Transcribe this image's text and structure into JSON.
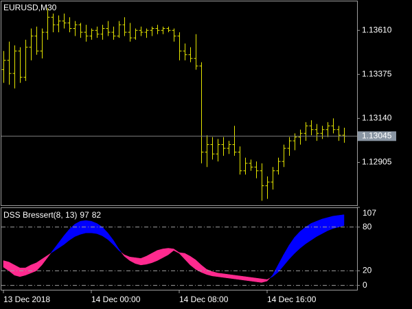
{
  "chart_data": [
    {
      "type": "ohlc",
      "title": "EURUSD,M30",
      "color": "#e6e600",
      "categories": [
        "13 Dec 2018",
        null,
        null,
        null,
        null,
        null,
        null,
        null,
        null,
        null,
        null,
        null,
        null,
        null,
        null,
        null,
        "14 Dec 00:00",
        null,
        null,
        null,
        null,
        null,
        null,
        null,
        null,
        null,
        null,
        null,
        null,
        null,
        null,
        null,
        "14 Dec 08:00",
        null,
        null,
        null,
        null,
        null,
        null,
        null,
        null,
        null,
        null,
        null,
        null,
        null,
        null,
        null,
        "14 Dec 16:00",
        null,
        null,
        null,
        null,
        null,
        null,
        null,
        null,
        null,
        null,
        null,
        null,
        null,
        null
      ],
      "open": [
        1.134,
        1.1345,
        1.1338,
        1.135,
        1.1336,
        1.1352,
        1.1358,
        1.135,
        1.136,
        1.1368,
        1.1364,
        1.1366,
        1.1365,
        1.1362,
        1.1364,
        1.136,
        1.1358,
        1.1361,
        1.1359,
        1.1362,
        1.136,
        1.1358,
        1.1364,
        1.136,
        1.1357,
        1.1361,
        1.136,
        1.1361,
        1.1362,
        1.1361,
        1.1362,
        1.1361,
        1.1358,
        1.135,
        1.1348,
        1.1346,
        1.1342,
        1.1296,
        1.13,
        1.1295,
        1.13,
        1.1298,
        1.13,
        1.1296,
        1.1286,
        1.129,
        1.1288,
        1.1286,
        1.1278,
        1.128,
        1.1286,
        1.1291,
        1.1298,
        1.1302,
        1.1304,
        1.1306,
        1.131,
        1.1308,
        1.1306,
        1.1308,
        1.131,
        1.1308,
        1.1305
      ],
      "high": [
        1.135,
        1.1355,
        1.1353,
        1.1352,
        1.1356,
        1.1362,
        1.1363,
        1.1362,
        1.1373,
        1.137,
        1.1369,
        1.137,
        1.1368,
        1.1366,
        1.1365,
        1.1364,
        1.1362,
        1.1363,
        1.1364,
        1.1366,
        1.1363,
        1.1366,
        1.1368,
        1.1365,
        1.1362,
        1.1363,
        1.1362,
        1.1363,
        1.1364,
        1.1363,
        1.1363,
        1.1362,
        1.136,
        1.1354,
        1.1352,
        1.1359,
        1.1344,
        1.1305,
        1.1304,
        1.1303,
        1.1304,
        1.1302,
        1.131,
        1.1299,
        1.1293,
        1.1292,
        1.1291,
        1.129,
        1.1283,
        1.1288,
        1.1293,
        1.13,
        1.1304,
        1.1306,
        1.1308,
        1.1312,
        1.1313,
        1.1311,
        1.131,
        1.1312,
        1.1314,
        1.131,
        1.1309
      ],
      "low": [
        1.1333,
        1.1332,
        1.133,
        1.1333,
        1.1334,
        1.1345,
        1.1348,
        1.1346,
        1.1356,
        1.136,
        1.136,
        1.1362,
        1.136,
        1.1358,
        1.1357,
        1.1355,
        1.1356,
        1.1357,
        1.1356,
        1.1358,
        1.1356,
        1.1357,
        1.1358,
        1.1355,
        1.1356,
        1.1358,
        1.1357,
        1.1358,
        1.1359,
        1.1359,
        1.136,
        1.1355,
        1.1345,
        1.1345,
        1.1344,
        1.134,
        1.129,
        1.1288,
        1.1292,
        1.1291,
        1.1294,
        1.1295,
        1.1294,
        1.1284,
        1.1284,
        1.1286,
        1.1282,
        1.127,
        1.1271,
        1.1276,
        1.1284,
        1.1288,
        1.1294,
        1.1297,
        1.13,
        1.1302,
        1.1305,
        1.1302,
        1.1303,
        1.1304,
        1.1306,
        1.1302,
        1.1301
      ],
      "close": [
        1.1345,
        1.1338,
        1.135,
        1.1336,
        1.1352,
        1.1358,
        1.135,
        1.136,
        1.1368,
        1.1364,
        1.1366,
        1.1365,
        1.1362,
        1.1364,
        1.136,
        1.1358,
        1.1361,
        1.1359,
        1.1362,
        1.136,
        1.1358,
        1.1364,
        1.136,
        1.1357,
        1.1361,
        1.136,
        1.1361,
        1.1362,
        1.1361,
        1.1362,
        1.1361,
        1.1358,
        1.135,
        1.1348,
        1.1346,
        1.1342,
        1.1296,
        1.13,
        1.1295,
        1.13,
        1.1298,
        1.13,
        1.1296,
        1.1286,
        1.129,
        1.1288,
        1.1286,
        1.1278,
        1.128,
        1.1286,
        1.1291,
        1.1298,
        1.1302,
        1.1304,
        1.1306,
        1.131,
        1.1308,
        1.1306,
        1.1308,
        1.131,
        1.1308,
        1.1305,
        1.13045
      ],
      "ylim": [
        1.12672,
        1.13765
      ],
      "yticks": [
        {
          "value": 1.1361,
          "label": "1.13610"
        },
        1.13375,
        {
          "value": 1.1314,
          "label": "1.13140"
        },
        1.12905
      ]
    },
    {
      "type": "band",
      "title": "DSS Bressert(8, 13)",
      "up_color": "#0000ff",
      "down_color": "#ff2a8f",
      "series": [
        {
          "values": [
            25,
            20,
            14,
            12,
            14,
            17,
            20,
            28,
            38,
            48,
            58,
            68,
            77,
            84,
            88,
            89,
            88,
            85,
            80,
            72,
            62,
            50,
            40,
            34,
            30,
            28,
            29,
            31,
            34,
            38,
            42,
            48,
            44,
            36,
            28,
            22,
            18,
            15,
            13,
            12,
            11,
            10,
            9,
            8,
            7,
            6,
            5,
            4,
            6,
            14,
            28,
            42,
            55,
            66,
            74,
            80,
            85,
            88,
            91,
            93,
            95,
            96,
            97
          ]
        },
        {
          "values": [
            34,
            32,
            28,
            24,
            24,
            28,
            31,
            36,
            41,
            46,
            51,
            56,
            62,
            67,
            70,
            72,
            72,
            71,
            68,
            63,
            56,
            48,
            42,
            39,
            38,
            37,
            40,
            44,
            48,
            50,
            51,
            50,
            45,
            44,
            40,
            35,
            28,
            22,
            19,
            17,
            16,
            15,
            14,
            13,
            12,
            11,
            10,
            9,
            8,
            12,
            18,
            27,
            36,
            44,
            51,
            57,
            62,
            67,
            71,
            75,
            78,
            80,
            82
          ]
        }
      ],
      "ylim": [
        -6,
        107
      ],
      "yticks": [
        107,
        80,
        20,
        0
      ]
    }
  ]
}
